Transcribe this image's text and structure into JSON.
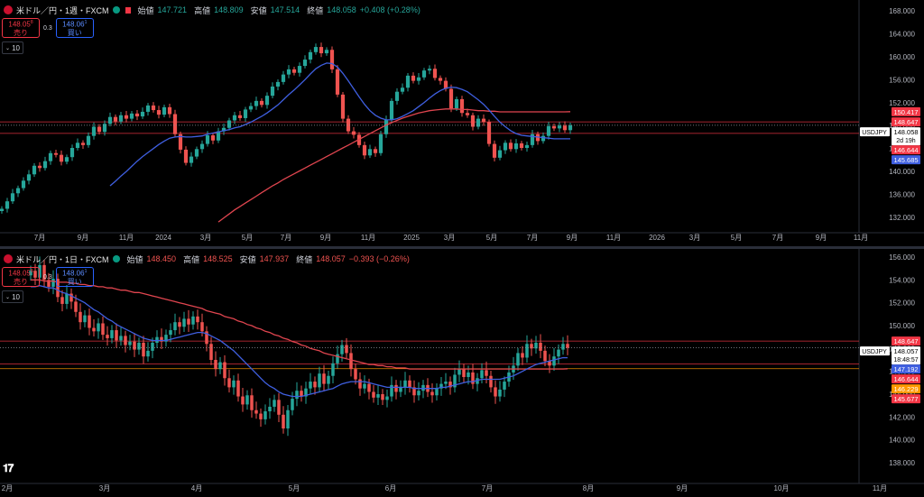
{
  "colors": {
    "up": "#26a69a",
    "down": "#ef5350",
    "ma_fast": "#3f5fe0",
    "ma_slow": "#e0454f",
    "level": "#f23645",
    "grid_text": "#b2b5be"
  },
  "chart_data": [
    {
      "type": "candlestick",
      "title": "米ドル／円・1週・FXCM",
      "ohlc_label": {
        "open_k": "始値",
        "open_v": "147.721",
        "high_k": "高値",
        "high_v": "148.809",
        "low_k": "安値",
        "low_v": "147.514",
        "close_k": "終値",
        "close_v": "148.058",
        "change": "+0.408 (+0.28%)"
      },
      "trade": {
        "sell_price": "148.05",
        "sell_sup": "8",
        "sell_label": "売り",
        "spread": "0.3",
        "buy_price": "148.06",
        "buy_sup": "1",
        "buy_label": "買い"
      },
      "indicator_length": "10",
      "y_ticks": [
        "168.000",
        "164.000",
        "160.000",
        "156.000",
        "152.000",
        "148.000",
        "144.000",
        "140.000",
        "136.000",
        "132.000"
      ],
      "ylim": [
        130,
        170
      ],
      "x_ticks": [
        "7月",
        "9月",
        "11月",
        "2024",
        "3月",
        "5月",
        "7月",
        "9月",
        "11月",
        "2025",
        "3月",
        "5月",
        "7月",
        "9月",
        "11月",
        "2026",
        "3月",
        "5月",
        "7月",
        "9月",
        "11月"
      ],
      "price_labels": [
        {
          "value": "150.417",
          "color": "#f23645"
        },
        {
          "value": "148.647",
          "color": "#f23645"
        },
        {
          "value": "148.058",
          "sub": "2d 19h",
          "color": "#ffffff",
          "symbol": "USDJPY"
        },
        {
          "value": "146.644",
          "color": "#f23645"
        },
        {
          "value": "145.685",
          "color": "#3f5fe0"
        }
      ],
      "levels": [
        148.647,
        146.644
      ],
      "closes": [
        133.5,
        134.8,
        136.2,
        137.1,
        138.4,
        139.5,
        141.0,
        140.6,
        141.8,
        143.2,
        142.9,
        141.7,
        142.5,
        144.1,
        145.0,
        144.6,
        146.2,
        147.8,
        146.9,
        148.3,
        149.5,
        148.7,
        149.8,
        149.2,
        150.1,
        149.6,
        150.4,
        151.5,
        150.7,
        149.9,
        151.2,
        150.0,
        146.5,
        143.8,
        141.5,
        142.6,
        143.9,
        144.8,
        146.3,
        145.4,
        147.0,
        147.6,
        148.9,
        149.8,
        149.3,
        150.8,
        151.4,
        152.3,
        151.6,
        153.2,
        154.8,
        155.6,
        156.9,
        157.8,
        157.2,
        158.4,
        159.5,
        160.8,
        161.7,
        160.6,
        161.2,
        157.8,
        153.4,
        149.2,
        147.0,
        146.4,
        144.6,
        142.8,
        143.9,
        143.2,
        146.5,
        149.0,
        152.3,
        153.9,
        154.6,
        156.7,
        155.8,
        156.4,
        157.6,
        157.9,
        156.3,
        155.8,
        154.4,
        151.0,
        152.6,
        150.2,
        149.8,
        147.8,
        149.2,
        148.6,
        144.8,
        142.4,
        143.7,
        145.0,
        143.9,
        144.9,
        144.1,
        144.6,
        146.5,
        145.3,
        146.2,
        147.9,
        147.5,
        148.0,
        147.2,
        148.058
      ],
      "ma_fast": [
        null,
        null,
        null,
        null,
        null,
        null,
        null,
        null,
        null,
        null,
        null,
        null,
        null,
        null,
        null,
        null,
        null,
        null,
        null,
        null,
        137.5,
        138.3,
        139.2,
        140.0,
        140.9,
        141.8,
        142.6,
        143.3,
        144.0,
        144.7,
        145.3,
        145.8,
        146.0,
        146.1,
        146.0,
        146.0,
        146.1,
        146.2,
        146.5,
        146.7,
        146.9,
        147.1,
        147.3,
        147.6,
        147.8,
        148.2,
        148.6,
        149.1,
        149.6,
        150.2,
        150.9,
        151.6,
        152.5,
        153.4,
        154.2,
        155.1,
        156.0,
        157.0,
        157.9,
        158.5,
        158.9,
        158.8,
        158.2,
        157.1,
        155.8,
        154.4,
        153.0,
        151.7,
        150.6,
        149.8,
        149.3,
        149.0,
        149.0,
        149.2,
        149.6,
        150.1,
        150.6,
        151.3,
        152.0,
        152.8,
        153.5,
        154.1,
        154.5,
        154.7,
        154.6,
        154.3,
        153.9,
        153.2,
        152.5,
        151.7,
        150.7,
        149.6,
        148.6,
        147.8,
        147.1,
        146.6,
        146.3,
        146.2,
        146.1,
        146.0,
        145.9,
        145.8,
        145.7,
        145.7,
        145.7,
        145.685
      ],
      "ma_slow": [
        null,
        null,
        null,
        null,
        null,
        null,
        null,
        null,
        null,
        null,
        null,
        null,
        null,
        null,
        null,
        null,
        null,
        null,
        null,
        null,
        null,
        null,
        null,
        null,
        null,
        null,
        null,
        null,
        null,
        null,
        null,
        null,
        null,
        null,
        null,
        null,
        null,
        null,
        null,
        null,
        131.2,
        131.9,
        132.6,
        133.3,
        133.9,
        134.5,
        135.1,
        135.7,
        136.3,
        136.9,
        137.5,
        138.0,
        138.6,
        139.1,
        139.6,
        140.1,
        140.6,
        141.1,
        141.6,
        142.1,
        142.6,
        143.1,
        143.6,
        144.1,
        144.6,
        145.1,
        145.6,
        146.1,
        146.6,
        147.1,
        147.6,
        148.1,
        148.5,
        148.9,
        149.3,
        149.6,
        149.9,
        150.2,
        150.4,
        150.6,
        150.7,
        150.8,
        150.9,
        150.9,
        150.9,
        150.8,
        150.8,
        150.7,
        150.6,
        150.6,
        150.5,
        150.5,
        150.4,
        150.4,
        150.4,
        150.4,
        150.4,
        150.4,
        150.4,
        150.4,
        150.4,
        150.4,
        150.4,
        150.4,
        150.4,
        150.417
      ]
    },
    {
      "type": "candlestick",
      "title": "米ドル／円・1日・FXCM",
      "ohlc_label": {
        "open_k": "始値",
        "open_v": "148.450",
        "high_k": "高値",
        "high_v": "148.525",
        "low_k": "安値",
        "low_v": "147.937",
        "close_k": "終値",
        "close_v": "148.057",
        "change": "−0.393 (−0.26%)"
      },
      "trade": {
        "sell_price": "148.05",
        "sell_sup": "8",
        "sell_label": "売り",
        "spread": "0.3",
        "buy_price": "148.06",
        "buy_sup": "1",
        "buy_label": "買い"
      },
      "indicator_length": "10",
      "y_ticks": [
        "156.000",
        "154.000",
        "152.000",
        "150.000",
        "148.000",
        "146.000",
        "144.000",
        "142.000",
        "140.000",
        "138.000"
      ],
      "ylim": [
        136.5,
        156.5
      ],
      "x_ticks": [
        "2月",
        "3月",
        "4月",
        "5月",
        "6月",
        "7月",
        "8月",
        "9月",
        "10月",
        "11月"
      ],
      "price_labels": [
        {
          "value": "148.647",
          "color": "#f23645"
        },
        {
          "value": "148.057",
          "sub": "18:48:57",
          "color": "#ffffff",
          "symbol": "USDJPY"
        },
        {
          "value": "147.192",
          "color": "#3f5fe0"
        },
        {
          "value": "146.644",
          "color": "#f23645"
        },
        {
          "value": "146.229",
          "color": "#ff9800"
        },
        {
          "value": "145.677",
          "color": "#f23645"
        }
      ],
      "levels": [
        148.647,
        146.644,
        146.229
      ],
      "closes": [
        154.8,
        154.2,
        155.3,
        154.0,
        153.4,
        154.1,
        152.5,
        151.9,
        152.8,
        152.1,
        151.2,
        150.3,
        150.9,
        149.8,
        149.5,
        150.2,
        149.2,
        148.9,
        149.6,
        148.7,
        149.1,
        148.3,
        148.6,
        147.9,
        148.5,
        147.3,
        147.8,
        148.5,
        149.0,
        148.6,
        149.2,
        149.6,
        150.3,
        149.9,
        150.6,
        150.1,
        150.8,
        150.3,
        149.5,
        148.4,
        147.0,
        146.2,
        146.8,
        145.4,
        144.6,
        145.2,
        143.8,
        143.1,
        143.9,
        142.6,
        142.3,
        141.8,
        142.5,
        142.9,
        143.5,
        142.2,
        141.0,
        142.6,
        143.6,
        144.3,
        143.8,
        144.5,
        145.1,
        144.6,
        145.8,
        144.9,
        145.6,
        146.7,
        147.5,
        148.3,
        147.6,
        146.2,
        145.3,
        144.5,
        144.9,
        144.2,
        143.7,
        144.0,
        143.5,
        143.8,
        144.8,
        144.2,
        144.6,
        145.2,
        144.6,
        143.9,
        144.3,
        144.8,
        144.2,
        143.9,
        144.5,
        144.9,
        145.1,
        144.6,
        145.7,
        146.2,
        145.5,
        145.9,
        144.9,
        145.4,
        146.1,
        145.6,
        144.6,
        143.8,
        144.4,
        145.1,
        145.9,
        146.5,
        147.6,
        147.2,
        148.4,
        148.0,
        148.5,
        147.8,
        146.9,
        146.5,
        147.3,
        147.9,
        148.4,
        148.057
      ],
      "ma_fast": [
        153.4,
        153.4,
        153.5,
        153.4,
        153.3,
        153.3,
        153.1,
        152.9,
        152.8,
        152.6,
        152.4,
        152.2,
        152.0,
        151.7,
        151.4,
        151.2,
        150.9,
        150.6,
        150.4,
        150.1,
        149.9,
        149.7,
        149.5,
        149.3,
        149.1,
        148.9,
        148.8,
        148.7,
        148.7,
        148.7,
        148.7,
        148.8,
        148.9,
        149.0,
        149.1,
        149.2,
        149.3,
        149.4,
        149.4,
        149.3,
        149.1,
        148.9,
        148.7,
        148.4,
        148.1,
        147.8,
        147.4,
        147.0,
        146.6,
        146.2,
        145.8,
        145.4,
        145.0,
        144.7,
        144.5,
        144.2,
        144.0,
        143.9,
        143.8,
        143.8,
        143.8,
        143.9,
        144.0,
        144.1,
        144.2,
        144.3,
        144.4,
        144.5,
        144.7,
        144.9,
        145.0,
        145.1,
        145.1,
        145.1,
        145.1,
        145.0,
        144.9,
        144.8,
        144.7,
        144.6,
        144.6,
        144.6,
        144.6,
        144.6,
        144.6,
        144.5,
        144.5,
        144.5,
        144.5,
        144.5,
        144.5,
        144.6,
        144.6,
        144.7,
        144.8,
        144.9,
        145.0,
        145.1,
        145.1,
        145.2,
        145.3,
        145.3,
        145.3,
        145.3,
        145.3,
        145.4,
        145.5,
        145.6,
        145.8,
        146.0,
        146.2,
        146.4,
        146.6,
        146.7,
        146.8,
        146.9,
        147.0,
        147.1,
        147.2,
        147.192
      ],
      "ma_slow": [
        154.0,
        154.0,
        154.0,
        153.9,
        153.9,
        153.9,
        153.8,
        153.8,
        153.8,
        153.7,
        153.7,
        153.6,
        153.6,
        153.5,
        153.5,
        153.4,
        153.4,
        153.3,
        153.3,
        153.2,
        153.1,
        153.1,
        153.0,
        152.9,
        152.9,
        152.8,
        152.7,
        152.6,
        152.5,
        152.4,
        152.3,
        152.2,
        152.1,
        152.0,
        151.9,
        151.8,
        151.7,
        151.6,
        151.5,
        151.3,
        151.2,
        151.1,
        151.0,
        150.8,
        150.7,
        150.6,
        150.4,
        150.3,
        150.1,
        150.0,
        149.8,
        149.7,
        149.5,
        149.4,
        149.2,
        149.1,
        148.9,
        148.8,
        148.6,
        148.5,
        148.3,
        148.2,
        148.0,
        147.9,
        147.8,
        147.6,
        147.5,
        147.4,
        147.3,
        147.2,
        147.1,
        147.0,
        146.9,
        146.8,
        146.7,
        146.6,
        146.6,
        146.5,
        146.5,
        146.4,
        146.4,
        146.3,
        146.3,
        146.3,
        146.2,
        146.2,
        146.2,
        146.2,
        146.2,
        146.2,
        146.2,
        146.2,
        146.2,
        146.2,
        146.2,
        146.2,
        146.2,
        146.2,
        146.2,
        146.2,
        146.2,
        146.2,
        146.2,
        146.2,
        146.2,
        146.2,
        146.2,
        146.2,
        146.2,
        146.2,
        146.2,
        146.2,
        146.2,
        146.2,
        146.2,
        146.2,
        146.2,
        146.2,
        146.2,
        146.229
      ]
    }
  ]
}
